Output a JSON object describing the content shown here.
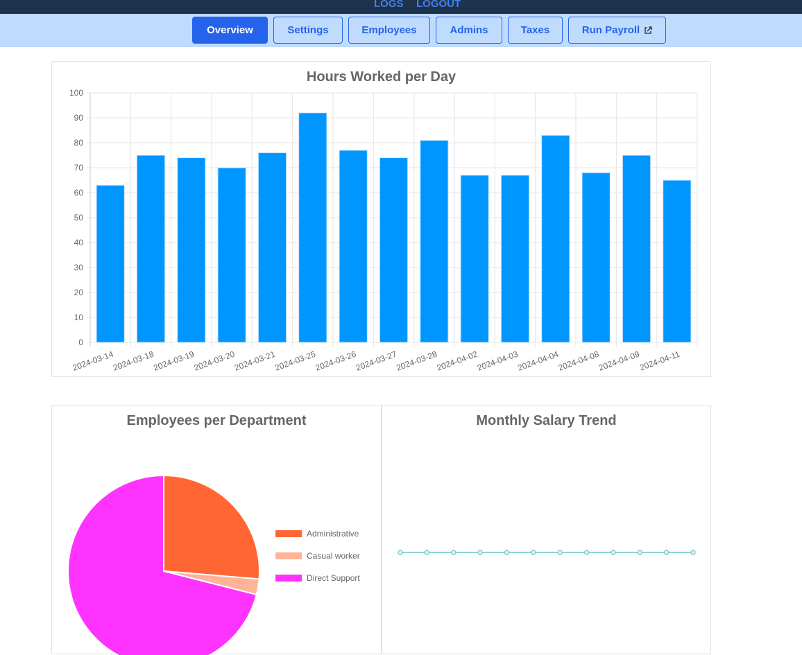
{
  "top_links": [
    "LOGS",
    "LOGOUT"
  ],
  "nav": {
    "items": [
      "Overview",
      "Settings",
      "Employees",
      "Admins",
      "Taxes",
      "Run Payroll"
    ],
    "active": "Overview"
  },
  "colors": {
    "bar": "#0096ff",
    "admin": "#ff6633",
    "casual": "#ffb399",
    "direct": "#ff33ff",
    "line": "#8fd3d4",
    "nav_active": "#2563eb"
  },
  "chart_data": [
    {
      "type": "bar",
      "title": "Hours Worked per Day",
      "categories": [
        "2024-03-14",
        "2024-03-18",
        "2024-03-19",
        "2024-03-20",
        "2024-03-21",
        "2024-03-25",
        "2024-03-26",
        "2024-03-27",
        "2024-03-28",
        "2024-04-02",
        "2024-04-03",
        "2024-04-04",
        "2024-04-08",
        "2024-04-09",
        "2024-04-11"
      ],
      "values": [
        63,
        75,
        74,
        70,
        76,
        92,
        77,
        74,
        81,
        67,
        67,
        83,
        68,
        75,
        65
      ],
      "ylim": [
        0,
        100
      ],
      "yticks": [
        0,
        10,
        20,
        30,
        40,
        50,
        60,
        70,
        80,
        90,
        100
      ],
      "grid": true
    },
    {
      "type": "pie",
      "title": "Employees per Department",
      "labels": [
        "Administrative",
        "Casual worker",
        "Direct Support"
      ],
      "values": [
        10,
        1,
        27
      ],
      "legend": "right"
    },
    {
      "type": "line",
      "title": "Monthly Salary Trend",
      "values": [
        0,
        0,
        0,
        0,
        0,
        0,
        0,
        0,
        0,
        0,
        0,
        0
      ]
    }
  ]
}
